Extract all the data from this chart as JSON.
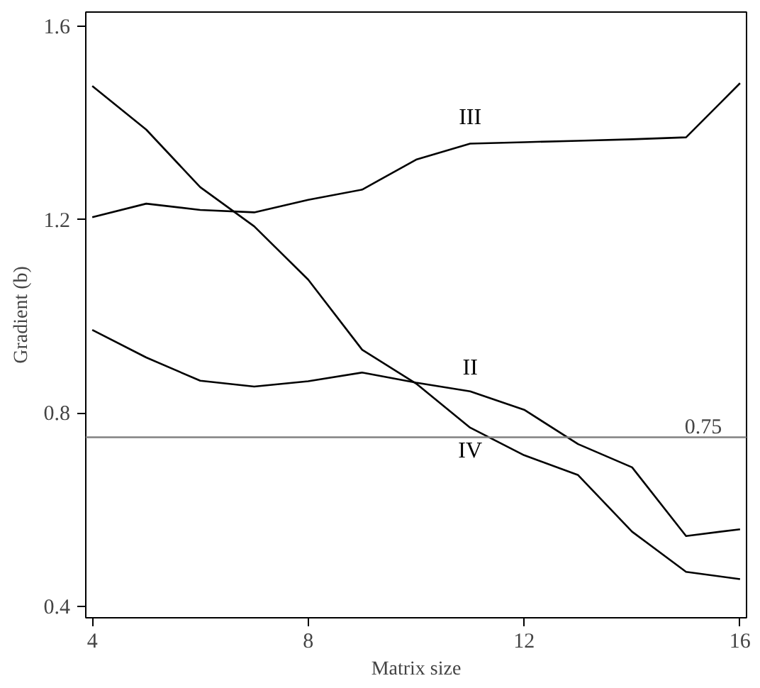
{
  "chart_data": {
    "type": "line",
    "xlabel": "Matrix size",
    "ylabel": "Gradient (b)",
    "x": [
      4,
      5,
      6,
      7,
      8,
      9,
      10,
      11,
      12,
      13,
      14,
      15,
      16
    ],
    "series": [
      {
        "name": "III",
        "color": "#000000",
        "values": [
          1.205,
          1.233,
          1.22,
          1.215,
          1.241,
          1.262,
          1.324,
          1.357,
          1.36,
          1.363,
          1.366,
          1.37,
          1.482
        ]
      },
      {
        "name": "II",
        "color": "#000000",
        "values": [
          0.972,
          0.915,
          0.867,
          0.855,
          0.866,
          0.884,
          0.863,
          0.845,
          0.807,
          0.736,
          0.688,
          0.546,
          0.56
        ]
      },
      {
        "name": "IV",
        "color": "#000000",
        "values": [
          1.476,
          1.386,
          1.267,
          1.186,
          1.076,
          0.931,
          0.861,
          0.77,
          0.713,
          0.672,
          0.555,
          0.472,
          0.457
        ]
      }
    ],
    "xlim": [
      3.88,
      16.12
    ],
    "ylim": [
      0.377,
      1.629
    ],
    "xticks": [
      4,
      8,
      12,
      16
    ],
    "yticks": [
      0.4,
      0.8,
      1.2,
      1.6
    ],
    "ref_lines": [
      {
        "axis": "y",
        "value": 0.75,
        "label": "0.75",
        "color": "#808080"
      }
    ],
    "grid": false,
    "legend": false,
    "marker": "none",
    "line_style": "solid"
  }
}
